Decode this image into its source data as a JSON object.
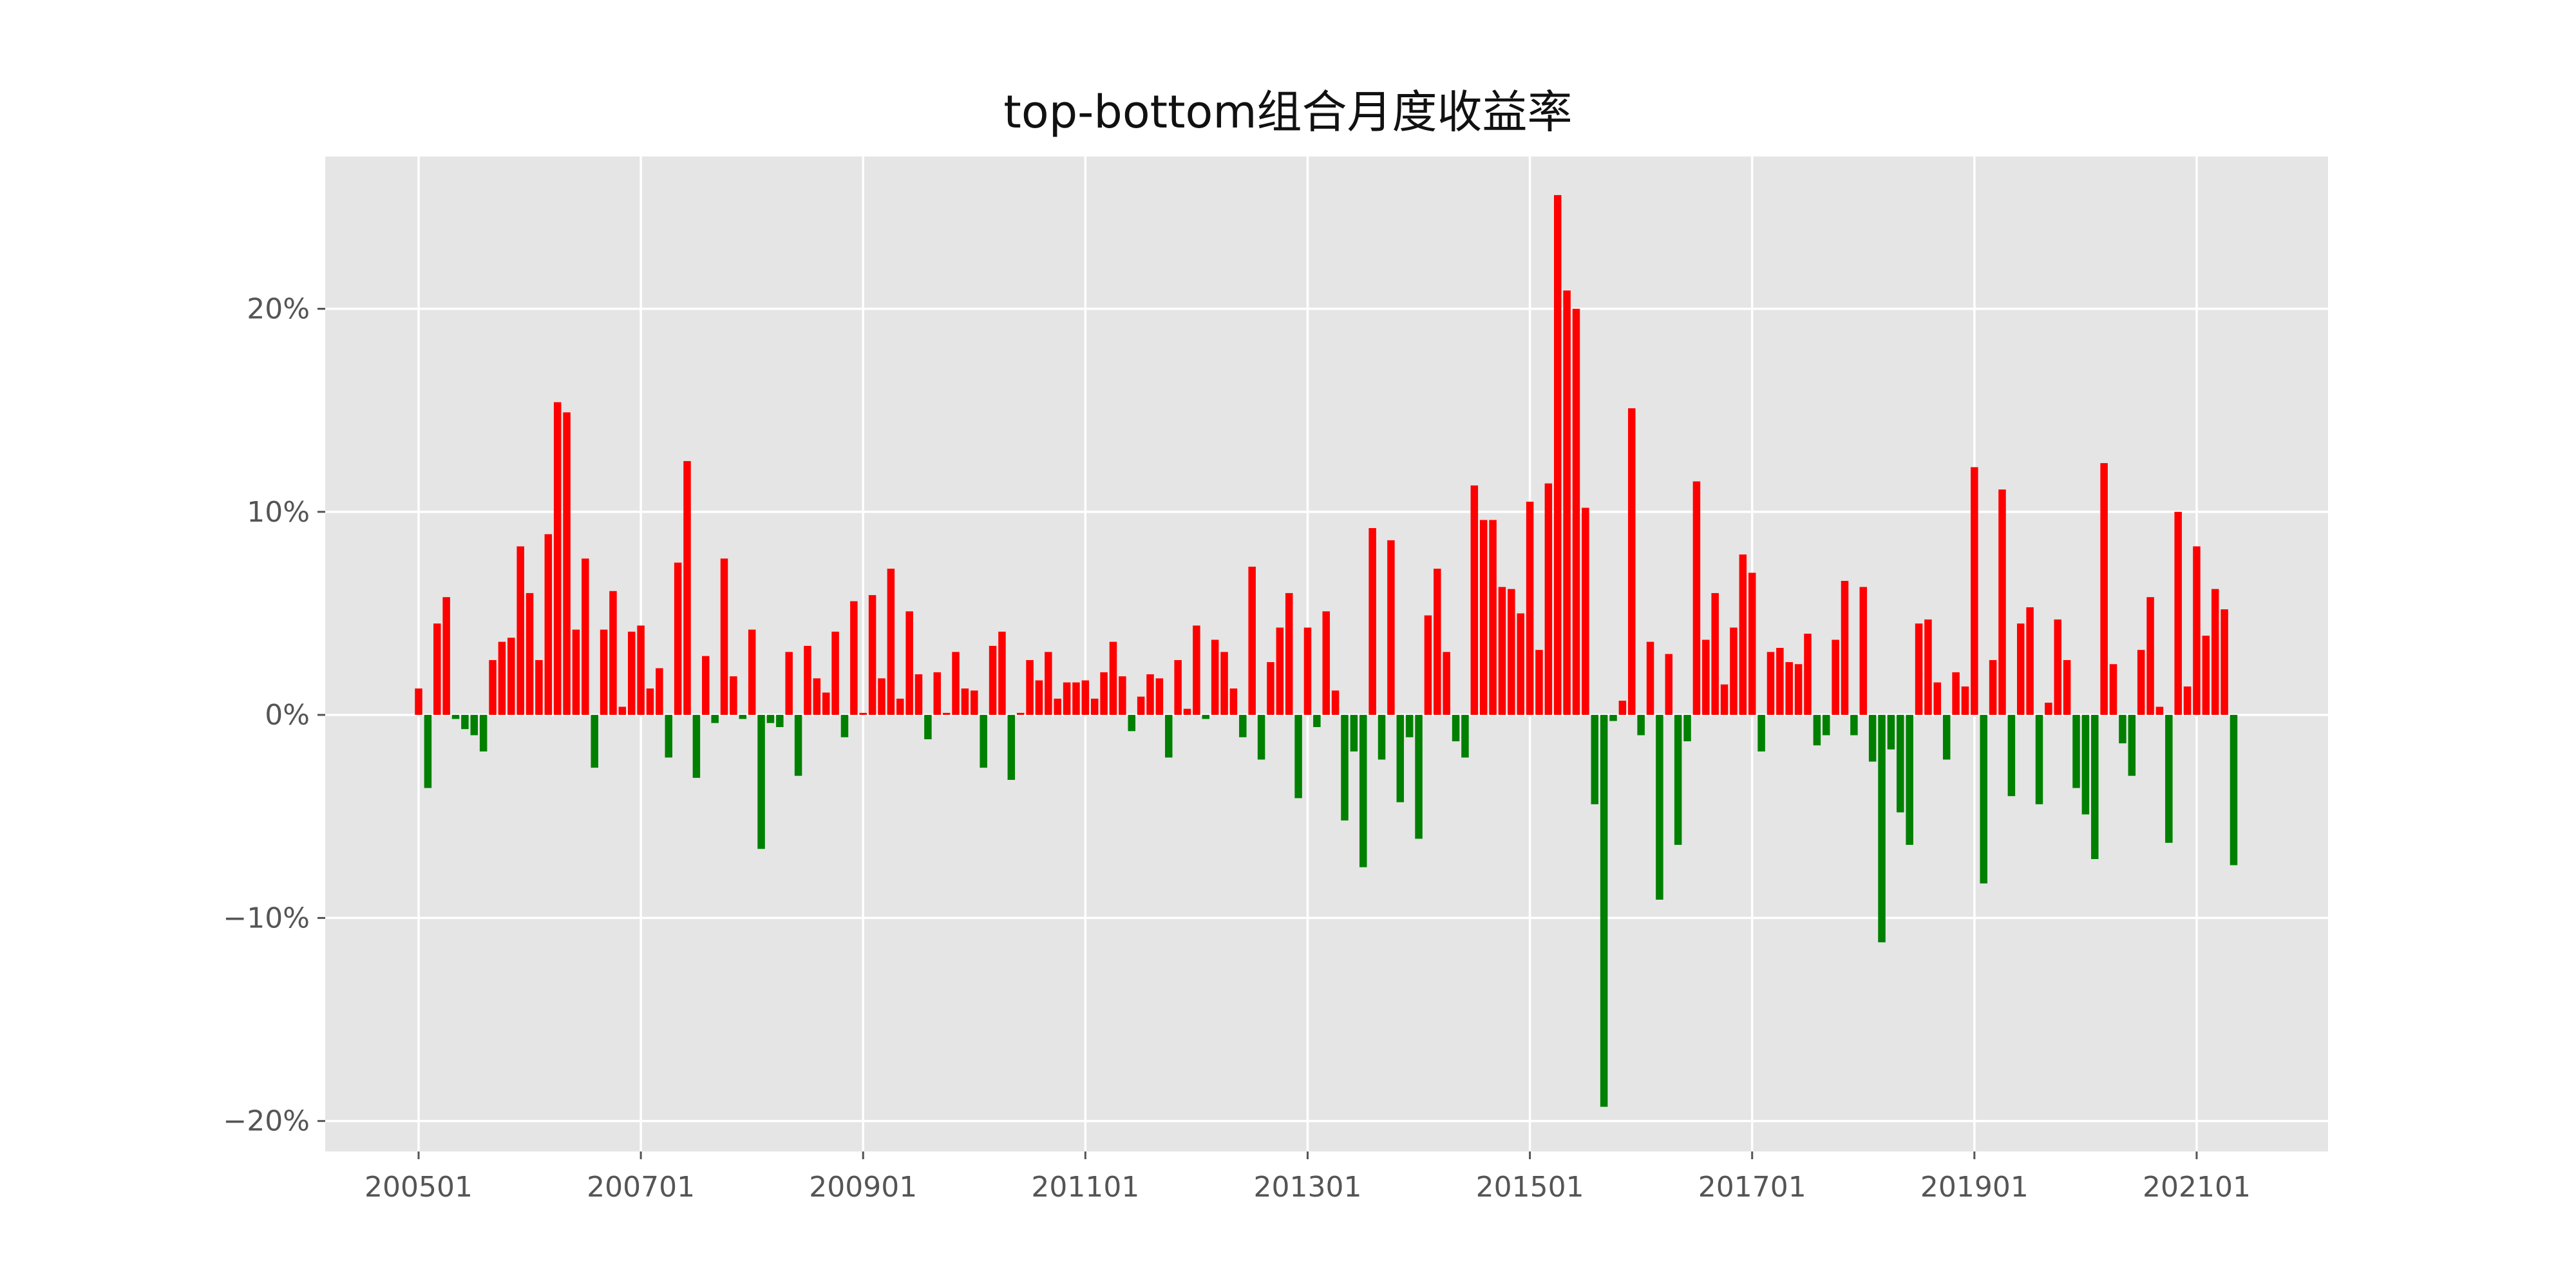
{
  "chart_data": {
    "type": "bar",
    "title": "top-bottom组合月度收益率",
    "xlabel": "",
    "ylabel": "",
    "x_tick_labels": [
      "200501",
      "200701",
      "200901",
      "201101",
      "201301",
      "201501",
      "201701",
      "201901",
      "202101"
    ],
    "y_tick_labels": [
      "20%",
      "10%",
      "0%",
      "−10%",
      "−20%"
    ],
    "y_ticks": [
      20,
      10,
      0,
      -10,
      -20
    ],
    "ylim": [
      -21.5,
      27.5
    ],
    "start_month": "2005-01",
    "unit": "%",
    "grid": true,
    "background": "#e5e5e5",
    "positive_color": "#ff0000",
    "negative_color": "#008000",
    "values": [
      1.3,
      -3.6,
      4.5,
      5.8,
      -0.2,
      -0.7,
      -1.0,
      -1.8,
      2.7,
      3.6,
      3.8,
      8.3,
      6.0,
      2.7,
      8.9,
      15.4,
      14.9,
      4.2,
      7.7,
      -2.6,
      4.2,
      6.1,
      0.4,
      4.1,
      4.4,
      1.3,
      2.3,
      -2.1,
      7.5,
      12.5,
      -3.1,
      2.9,
      -0.4,
      7.7,
      1.9,
      -0.2,
      4.2,
      -6.6,
      -0.4,
      -0.6,
      3.1,
      -3.0,
      3.4,
      1.8,
      1.1,
      4.1,
      -1.1,
      5.6,
      0.1,
      5.9,
      1.8,
      7.2,
      0.8,
      5.1,
      2.0,
      -1.2,
      2.1,
      0.1,
      3.1,
      1.3,
      1.2,
      -2.6,
      3.4,
      4.1,
      -3.2,
      0.1,
      2.7,
      1.7,
      3.1,
      0.8,
      1.6,
      1.6,
      1.7,
      0.8,
      2.1,
      3.6,
      1.9,
      -0.8,
      0.9,
      2.0,
      1.8,
      -2.1,
      2.7,
      0.3,
      4.4,
      -0.2,
      3.7,
      3.1,
      1.3,
      -1.1,
      7.3,
      -2.2,
      2.6,
      4.3,
      6.0,
      -4.1,
      4.3,
      -0.6,
      5.1,
      1.2,
      -5.2,
      -1.8,
      -7.5,
      9.2,
      -2.2,
      8.6,
      -4.3,
      -1.1,
      -6.1,
      4.9,
      7.2,
      3.1,
      -1.3,
      -2.1,
      11.3,
      9.6,
      9.6,
      6.3,
      6.2,
      5.0,
      10.5,
      3.2,
      11.4,
      25.6,
      20.9,
      20.0,
      10.2,
      -4.4,
      -19.3,
      -0.3,
      0.7,
      15.1,
      -1.0,
      3.6,
      -9.1,
      3.0,
      -6.4,
      -1.3,
      11.5,
      3.7,
      6.0,
      1.5,
      4.3,
      7.9,
      7.0,
      -1.8,
      3.1,
      3.3,
      2.6,
      2.5,
      4.0,
      -1.5,
      -1.0,
      3.7,
      6.6,
      -1.0,
      6.3,
      -2.3,
      -11.2,
      -1.7,
      -4.8,
      -6.4,
      4.5,
      4.7,
      1.6,
      -2.2,
      2.1,
      1.4,
      12.2,
      -8.3,
      2.7,
      11.1,
      -4.0,
      4.5,
      5.3,
      -4.4,
      0.6,
      4.7,
      2.7,
      -3.6,
      -4.9,
      -7.1,
      12.4,
      2.5,
      -1.4,
      -3.0,
      3.2,
      5.8,
      0.4,
      -6.3,
      10.0,
      1.4,
      8.3,
      3.9,
      6.2,
      5.2,
      -7.4
    ]
  }
}
